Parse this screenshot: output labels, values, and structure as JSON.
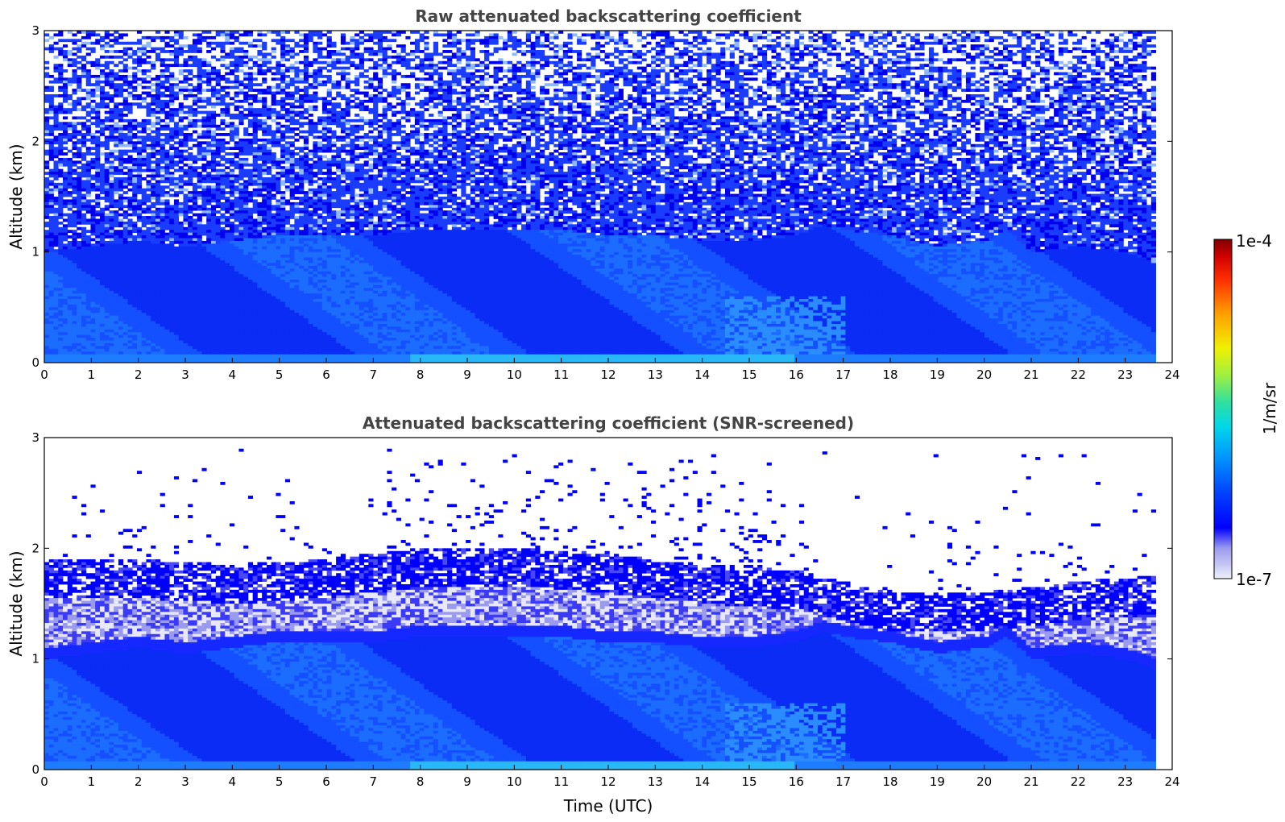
{
  "chart_data": [
    {
      "type": "heatmap",
      "title": "Raw attenuated backscattering coefficient",
      "xlabel": "",
      "ylabel": "Altitude (km)",
      "xlim": [
        0,
        24
      ],
      "ylim": [
        0,
        3
      ],
      "xticks": [
        "0",
        "1",
        "2",
        "3",
        "4",
        "5",
        "6",
        "7",
        "8",
        "9",
        "10",
        "11",
        "12",
        "13",
        "14",
        "15",
        "16",
        "17",
        "18",
        "19",
        "20",
        "21",
        "22",
        "23",
        "24"
      ],
      "yticks": [
        "0",
        "1",
        "2",
        "3"
      ],
      "data_end_time": 23.65,
      "screened": false,
      "boundary_layer_top_km": [
        [
          0,
          1.0
        ],
        [
          1,
          1.05
        ],
        [
          2,
          1.1
        ],
        [
          3,
          1.05
        ],
        [
          4,
          1.1
        ],
        [
          5,
          1.15
        ],
        [
          6,
          1.15
        ],
        [
          7,
          1.15
        ],
        [
          8,
          1.2
        ],
        [
          9,
          1.2
        ],
        [
          10,
          1.2
        ],
        [
          11,
          1.2
        ],
        [
          12,
          1.15
        ],
        [
          13,
          1.15
        ],
        [
          14,
          1.1
        ],
        [
          15,
          1.1
        ],
        [
          16,
          1.15
        ],
        [
          16.6,
          1.25
        ],
        [
          17,
          1.2
        ],
        [
          18,
          1.15
        ],
        [
          19,
          1.05
        ],
        [
          20,
          1.1
        ],
        [
          20.5,
          1.2
        ],
        [
          21,
          1.0
        ],
        [
          22,
          1.05
        ],
        [
          23,
          1.0
        ],
        [
          23.65,
          0.9
        ]
      ]
    },
    {
      "type": "heatmap",
      "title": "Attenuated backscattering coefficient (SNR-screened)",
      "xlabel": "Time (UTC)",
      "ylabel": "Altitude (km)",
      "xlim": [
        0,
        24
      ],
      "ylim": [
        0,
        3
      ],
      "xticks": [
        "0",
        "1",
        "2",
        "3",
        "4",
        "5",
        "6",
        "7",
        "8",
        "9",
        "10",
        "11",
        "12",
        "13",
        "14",
        "15",
        "16",
        "17",
        "18",
        "19",
        "20",
        "21",
        "22",
        "23",
        "24"
      ],
      "yticks": [
        "0",
        "1",
        "2",
        "3"
      ],
      "data_end_time": 23.65,
      "screened": true,
      "aerosol_layer_top_km": [
        [
          0,
          1.9
        ],
        [
          2,
          1.9
        ],
        [
          4,
          1.85
        ],
        [
          6,
          1.9
        ],
        [
          8,
          2.0
        ],
        [
          10,
          2.0
        ],
        [
          12,
          1.95
        ],
        [
          14,
          1.85
        ],
        [
          16,
          1.8
        ],
        [
          18,
          1.6
        ],
        [
          20,
          1.6
        ],
        [
          22,
          1.7
        ],
        [
          23.65,
          1.75
        ]
      ]
    }
  ],
  "colorbar": {
    "label": "1/m/sr",
    "max_label": "1e-4",
    "min_label": "1e-7",
    "scale": "log",
    "colormap": "jet with white-lavender low end",
    "colors": [
      "#f0f0fc",
      "#c8c8f4",
      "#9a9aee",
      "#0000ff",
      "#0040ff",
      "#0090ff",
      "#00d8e8",
      "#30e0a0",
      "#a0f040",
      "#f0f000",
      "#ffa000",
      "#ff3000",
      "#d00000",
      "#7f0000"
    ]
  }
}
